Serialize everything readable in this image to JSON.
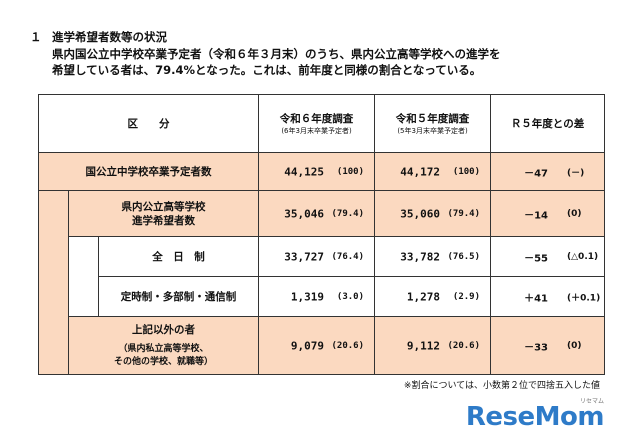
{
  "section": {
    "number": "１",
    "title": "進学希望者数等の状況",
    "lines": [
      "県内国公立中学校卒業予定者（令和６年３月末）のうち、県内公立高等学校への進学を",
      "希望している者は、79.4%となった。これは、前年度と同様の割合となっている。"
    ]
  },
  "table": {
    "headers": {
      "category": "区　　分",
      "current": "令和６年度調査",
      "current_sub": "(6年3月末卒業予定者)",
      "previous": "令和５年度調査",
      "previous_sub": "(5年3月末卒業予定者)",
      "diff": "Ｒ５年度との差"
    },
    "rows": [
      {
        "label": "国公立中学校卒業予定者数",
        "r6": "44,125",
        "r6p": "(100)",
        "r5": "44,172",
        "r5p": "(100)",
        "diff": "－47",
        "diffp": "(－)"
      },
      {
        "label": "県内公立高等学校",
        "label2": "進学希望者数",
        "r6": "35,046",
        "r6p": "(79.4)",
        "r5": "35,060",
        "r5p": "(79.4)",
        "diff": "－14",
        "diffp": "(0)"
      },
      {
        "label": "全　日　制",
        "r6": "33,727",
        "r6p": "(76.4)",
        "r5": "33,782",
        "r5p": "(76.5)",
        "diff": "－55",
        "diffp": "(△0.1)"
      },
      {
        "label": "定時制・多部制・通信制",
        "r6": "1,319",
        "r6p": "(3.0)",
        "r5": "1,278",
        "r5p": "(2.9)",
        "diff": "＋41",
        "diffp": "(＋0.1)"
      },
      {
        "label": "上記以外の者",
        "note1": "（県内私立高等学校、",
        "note2": "その他の学校、就職等）",
        "r6": "9,079",
        "r6p": "(20.6)",
        "r5": "9,112",
        "r5p": "(20.6)",
        "diff": "－33",
        "diffp": "(0)"
      }
    ]
  },
  "footnote": "※割合については、小数第２位で四捨五入した値",
  "logo": {
    "text": "ReseMom",
    "sub": "リセマム"
  },
  "colors": {
    "peach": "#fbd9c0",
    "logo": "#2e7bc8"
  }
}
